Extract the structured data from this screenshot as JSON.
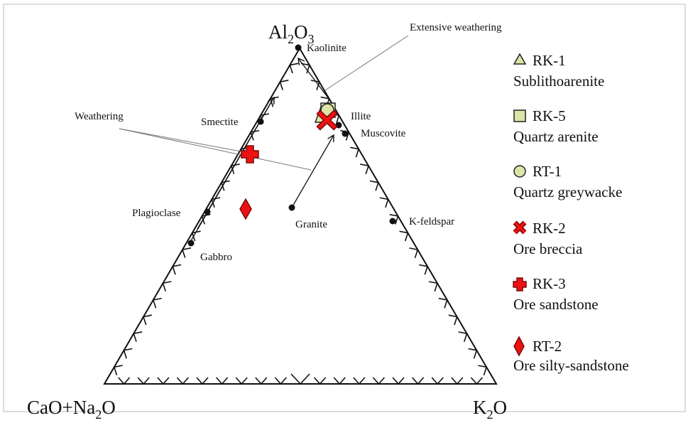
{
  "diagram": {
    "vertices": {
      "top_main": "Al",
      "top_sub1": "2",
      "top_mid": "O",
      "top_sub2": "3",
      "left_a": "CaO+Na",
      "left_sub": "2",
      "left_b": "O",
      "right_a": "K",
      "right_sub": "2",
      "right_b": "O"
    },
    "minerals": {
      "kaolinite": "Kaolinite",
      "illite": "Illite",
      "muscovite": "Muscovite",
      "smectite": "Smectite",
      "plagioclase": "Plagioclase",
      "gabbro": "Gabbro",
      "granite": "Granite",
      "kfeldspar": "K-feldspar"
    },
    "annotations": {
      "extensive": "Extensive weathering",
      "weathering": "Weathering"
    },
    "colors": {
      "yellow_fill": "#dde4a8",
      "red_fill": "#ee1111",
      "dark_red": "#b01010",
      "stroke": "#222222"
    }
  },
  "legend": [
    {
      "code": "RK-1",
      "name": "Sublithoarenite",
      "symbol": "triangle"
    },
    {
      "code": "RK-5",
      "name": "Quartz arenite",
      "symbol": "square"
    },
    {
      "code": "RT-1",
      "name": "Quartz greywacke",
      "symbol": "circle"
    },
    {
      "code": "RK-2",
      "name": "Ore breccia",
      "symbol": "x-cross"
    },
    {
      "code": "RK-3",
      "name": "Ore sandstone",
      "symbol": "plus"
    },
    {
      "code": "RT-2",
      "name": "Ore silty-sandstone",
      "symbol": "diamond"
    }
  ]
}
